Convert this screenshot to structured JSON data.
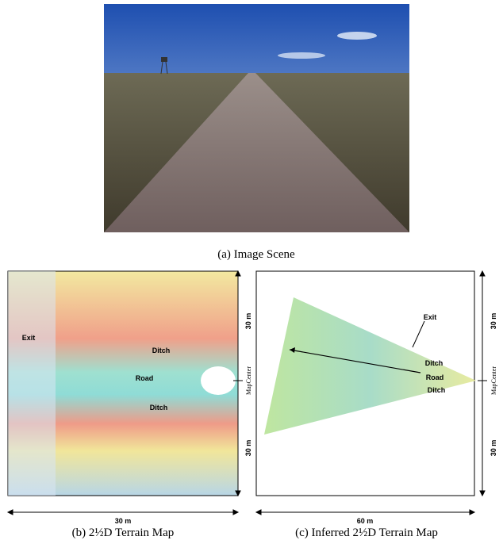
{
  "figure": {
    "panels": [
      {
        "caption": "(a) Image Scene"
      },
      {
        "caption": "(b) 2½D Terrain Map",
        "labels": [
          "Exit",
          "Ditch",
          "Road",
          "Ditch"
        ],
        "width_label": "30 m",
        "height_labels": [
          "30 m",
          "30 m"
        ],
        "center_label": "MapCenter"
      },
      {
        "caption": "(c) Inferred 2½D Terrain Map",
        "labels": [
          "Exit",
          "Ditch",
          "Road",
          "Ditch"
        ],
        "width_label": "60 m",
        "height_labels": [
          "30 m",
          "30 m"
        ],
        "center_label": "MapCenter"
      }
    ]
  }
}
